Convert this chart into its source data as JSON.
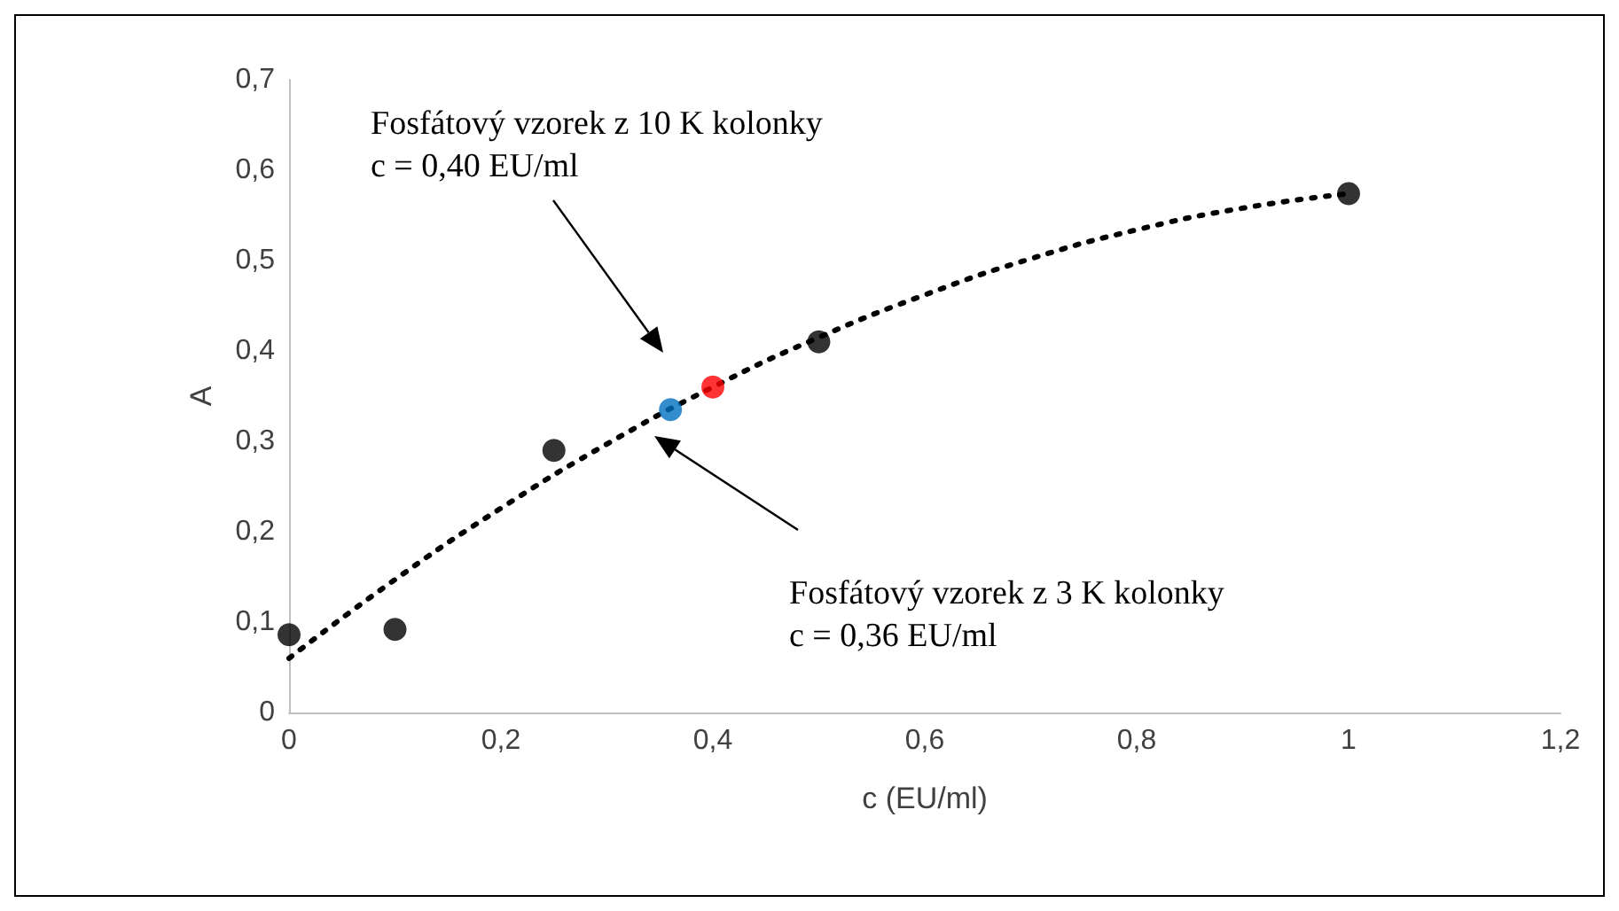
{
  "chart_data": {
    "type": "scatter",
    "xlabel": "c (EU/ml)",
    "ylabel": "A",
    "xlim": [
      0,
      1.2
    ],
    "xticks": [
      {
        "value": 0,
        "label": "0"
      },
      {
        "value": 0.2,
        "label": "0,2"
      },
      {
        "value": 0.4,
        "label": "0,4"
      },
      {
        "value": 0.6,
        "label": "0,6"
      },
      {
        "value": 0.8,
        "label": "0,8"
      },
      {
        "value": 1,
        "label": "1"
      },
      {
        "value": 1.2,
        "label": "1,2"
      }
    ],
    "ylim": [
      0,
      0.7
    ],
    "yticks": [
      {
        "value": 0,
        "label": "0"
      },
      {
        "value": 0.1,
        "label": "0,1"
      },
      {
        "value": 0.2,
        "label": "0,2"
      },
      {
        "value": 0.3,
        "label": "0,3"
      },
      {
        "value": 0.4,
        "label": "0,4"
      },
      {
        "value": 0.5,
        "label": "0,5"
      },
      {
        "value": 0.6,
        "label": "0,6"
      },
      {
        "value": 0.7,
        "label": "0,7"
      }
    ],
    "grid": false,
    "marker": "circle",
    "series": [
      {
        "type": "line",
        "line_style": "dotted",
        "marker": "none",
        "color": "#000000",
        "x": [
          0,
          0.1,
          0.2,
          0.3,
          0.4,
          0.5,
          0.6,
          0.7,
          0.8,
          0.9,
          1
        ],
        "values": [
          0.06,
          0.147,
          0.226,
          0.297,
          0.36,
          0.415,
          0.462,
          0.502,
          0.534,
          0.558,
          0.574
        ]
      },
      {
        "type": "scatter",
        "color": "#000000",
        "x": [
          0,
          0.1,
          0.25,
          0.5,
          1
        ],
        "values": [
          0.086,
          0.092,
          0.29,
          0.41,
          0.574
        ]
      },
      {
        "type": "scatter",
        "color": "#ff0000",
        "x": [
          0.4
        ],
        "values": [
          0.36
        ]
      },
      {
        "type": "scatter",
        "color": "#0070c0",
        "x": [
          0.36
        ],
        "values": [
          0.335
        ]
      }
    ],
    "annotations": [
      "Fosfátový vzorek z 10 K kolonky\nc = 0,40 EU/ml",
      "Fosfátový vzorek z 3 K kolonky\nc = 0,36 EU/ml"
    ]
  }
}
